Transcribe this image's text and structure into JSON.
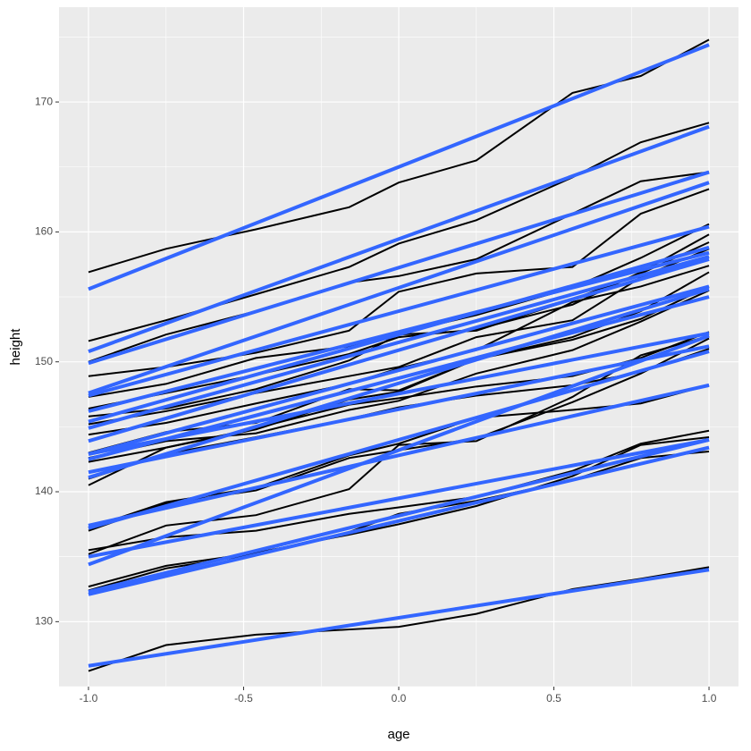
{
  "chart_data": {
    "type": "line",
    "x_label": "age",
    "y_label": "height",
    "x": [
      -1.0,
      -0.75,
      -0.46,
      -0.16,
      0.0,
      0.25,
      0.56,
      0.78,
      1.0
    ],
    "fit_x": [
      -1,
      1
    ],
    "line_color": "#000000",
    "fit_color": "#3366FF",
    "xlim": [
      -1.095,
      1.095
    ],
    "ylim": [
      125.0,
      177.3
    ],
    "xticks": [
      {
        "value": -1,
        "label": "-1.0"
      },
      -0.5,
      {
        "value": 0,
        "label": "0.0"
      },
      0.5,
      {
        "value": 1,
        "label": "1.0"
      }
    ],
    "yticks": [
      130,
      140,
      150,
      160,
      170
    ],
    "xminor": [
      -0.75,
      -0.25,
      0.25,
      0.75
    ],
    "yminor": [
      125,
      135,
      145,
      155,
      165,
      175
    ],
    "grid": true,
    "series": [
      {
        "values": [
          156.9,
          158.7,
          160.2,
          161.9,
          163.8,
          165.5,
          170.7,
          172.0,
          174.8
        ],
        "fit": [
          155.6,
          174.4
        ]
      },
      {
        "values": [
          151.6,
          153.2,
          155.2,
          157.3,
          159.1,
          160.9,
          164.2,
          166.9,
          168.4
        ],
        "fit": [
          150.8,
          168.1
        ]
      },
      {
        "values": [
          150.0,
          152.1,
          153.9,
          156.1,
          156.6,
          157.9,
          161.4,
          163.9,
          164.6
        ],
        "fit": [
          149.9,
          164.6
        ]
      },
      {
        "values": [
          148.9,
          149.6,
          150.7,
          152.4,
          155.4,
          156.8,
          157.3,
          161.4,
          163.3
        ],
        "fit": [
          147.6,
          163.8
        ]
      },
      {
        "values": [
          147.3,
          148.3,
          150.3,
          151.2,
          152.2,
          153.6,
          155.7,
          158.0,
          160.6
        ],
        "fit": [
          147.4,
          160.4
        ]
      },
      {
        "values": [
          146.4,
          147.6,
          149.0,
          150.6,
          151.9,
          152.5,
          154.4,
          156.9,
          159.8
        ],
        "fit": [
          146.2,
          158.4
        ]
      },
      {
        "values": [
          145.8,
          146.4,
          147.9,
          150.1,
          152.1,
          152.4,
          154.8,
          156.8,
          159.2
        ],
        "fit": [
          145.4,
          158.8
        ]
      },
      {
        "values": [
          145.2,
          146.2,
          147.6,
          148.9,
          149.6,
          151.9,
          153.2,
          156.5,
          158.7
        ],
        "fit": [
          144.9,
          158.1
        ]
      },
      {
        "values": [
          144.4,
          145.3,
          146.8,
          148.3,
          149.5,
          150.9,
          154.6,
          155.8,
          157.4
        ],
        "fit": [
          143.9,
          157.9
        ]
      },
      {
        "values": [
          143.0,
          144.6,
          145.3,
          147.9,
          147.8,
          150.2,
          151.9,
          153.9,
          156.9
        ],
        "fit": [
          142.9,
          155.8
        ]
      },
      {
        "values": [
          142.6,
          143.9,
          144.5,
          146.3,
          147.0,
          149.1,
          150.9,
          153.1,
          155.5
        ],
        "fit": [
          142.5,
          155.0
        ]
      },
      {
        "values": [
          142.3,
          143.4,
          144.9,
          146.7,
          147.2,
          148.1,
          148.9,
          150.3,
          152.3
        ],
        "fit": [
          142.9,
          152.2
        ]
      },
      {
        "values": [
          141.0,
          142.9,
          144.2,
          145.6,
          146.5,
          147.4,
          148.2,
          149.2,
          151.0
        ],
        "fit": [
          141.5,
          151.2
        ]
      },
      {
        "values": [
          140.5,
          143.4,
          144.8,
          147.1,
          147.7,
          150.2,
          151.7,
          153.3,
          155.8
        ],
        "fit": [
          141.1,
          155.6
        ]
      },
      {
        "values": [
          137.0,
          139.1,
          140.1,
          142.6,
          143.2,
          144.1,
          146.9,
          149.1,
          151.8
        ],
        "fit": [
          137.2,
          150.8
        ]
      },
      {
        "values": [
          137.2,
          139.2,
          140.3,
          142.8,
          143.7,
          145.7,
          146.3,
          146.8,
          148.2
        ],
        "fit": [
          137.4,
          148.2
        ]
      },
      {
        "values": [
          135.2,
          137.4,
          138.2,
          140.2,
          143.6,
          143.9,
          147.3,
          150.5,
          152.0
        ],
        "fit": [
          134.4,
          152.0
        ]
      },
      {
        "values": [
          135.5,
          136.5,
          137.0,
          138.3,
          138.8,
          139.6,
          141.6,
          143.7,
          144.7
        ],
        "fit": [
          135.0,
          144.0
        ]
      },
      {
        "values": [
          132.7,
          134.3,
          135.3,
          136.7,
          137.5,
          138.9,
          141.2,
          143.6,
          144.2
        ],
        "fit": [
          132.3,
          144.0
        ]
      },
      {
        "values": [
          132.4,
          134.1,
          135.2,
          136.9,
          138.3,
          139.3,
          140.9,
          142.6,
          143.1
        ],
        "fit": [
          132.1,
          143.4
        ]
      },
      {
        "values": [
          126.2,
          128.2,
          129.0,
          129.4,
          129.6,
          130.6,
          132.5,
          133.3,
          134.2
        ],
        "fit": [
          126.6,
          134.0
        ]
      }
    ]
  }
}
